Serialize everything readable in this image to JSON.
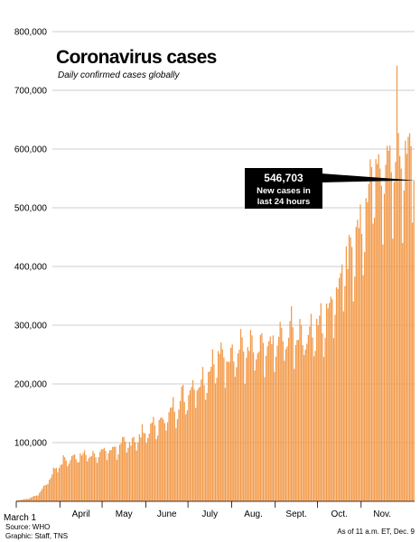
{
  "chart_data": {
    "type": "bar",
    "title": "Coronavirus cases",
    "subtitle": "Daily confirmed cases globally",
    "xlabel": "",
    "ylabel": "",
    "ylim": [
      0,
      800000
    ],
    "y_ticks": [
      "100,000",
      "200,000",
      "300,000",
      "400,000",
      "500,000",
      "600,000",
      "700,000",
      "800,000"
    ],
    "y_tick_values": [
      100000,
      200000,
      300000,
      400000,
      500000,
      600000,
      700000,
      800000
    ],
    "x_ticks": [
      {
        "label": "March 1",
        "date": "2020-03-01"
      },
      {
        "label": "April",
        "date": "2020-04-01"
      },
      {
        "label": "May",
        "date": "2020-05-01"
      },
      {
        "label": "June",
        "date": "2020-06-01"
      },
      {
        "label": "July",
        "date": "2020-07-01"
      },
      {
        "label": "Aug.",
        "date": "2020-08-01"
      },
      {
        "label": "Sept.",
        "date": "2020-09-01"
      },
      {
        "label": "Oct.",
        "date": "2020-10-01"
      },
      {
        "label": "Nov.",
        "date": "2020-11-01"
      }
    ],
    "grid": true,
    "bar_color": "#f29a4a",
    "start_date": "2020-03-01",
    "end_date": "2020-12-08",
    "monthly_points": [
      [
        "2020-03-01",
        1800
      ],
      [
        "2020-03-08",
        4000
      ],
      [
        "2020-03-15",
        10000
      ],
      [
        "2020-03-22",
        30000
      ],
      [
        "2020-03-29",
        58000
      ],
      [
        "2020-04-05",
        72000
      ],
      [
        "2020-04-12",
        76000
      ],
      [
        "2020-04-19",
        80000
      ],
      [
        "2020-04-26",
        80000
      ],
      [
        "2020-05-03",
        86000
      ],
      [
        "2020-05-10",
        90000
      ],
      [
        "2020-05-17",
        97000
      ],
      [
        "2020-05-24",
        105000
      ],
      [
        "2020-05-31",
        118000
      ],
      [
        "2020-06-07",
        128000
      ],
      [
        "2020-06-14",
        140000
      ],
      [
        "2020-06-21",
        160000
      ],
      [
        "2020-06-28",
        178000
      ],
      [
        "2020-07-05",
        198000
      ],
      [
        "2020-07-12",
        210000
      ],
      [
        "2020-07-19",
        235000
      ],
      [
        "2020-07-26",
        250000
      ],
      [
        "2020-08-02",
        255000
      ],
      [
        "2020-08-09",
        258000
      ],
      [
        "2020-08-16",
        255000
      ],
      [
        "2020-08-23",
        255000
      ],
      [
        "2020-08-30",
        265000
      ],
      [
        "2020-09-06",
        275000
      ],
      [
        "2020-09-13",
        290000
      ],
      [
        "2020-09-20",
        285000
      ],
      [
        "2020-09-27",
        290000
      ],
      [
        "2020-10-04",
        300000
      ],
      [
        "2020-10-11",
        345000
      ],
      [
        "2020-10-18",
        390000
      ],
      [
        "2020-10-25",
        440000
      ],
      [
        "2020-11-01",
        470000
      ],
      [
        "2020-11-08",
        540000
      ],
      [
        "2020-11-15",
        560000
      ],
      [
        "2020-11-22",
        575000
      ],
      [
        "2020-11-29",
        560000
      ],
      [
        "2020-12-06",
        600000
      ],
      [
        "2020-12-08",
        546703
      ]
    ],
    "peak": {
      "date": "2020-11-26",
      "value": 742000
    },
    "annotation": {
      "value_text": "546,703",
      "line1": "New cases in",
      "line2": "last 24 hours"
    }
  },
  "footer": {
    "source": "Source: WHO",
    "graphic": "Graphic: Staff, TNS",
    "as_of": "As of 11 a.m. ET, Dec. 9"
  },
  "colors": {
    "bar": "#f29a4a",
    "grid": "#bdbdbd",
    "callout_bg": "#000000",
    "callout_text": "#ffffff"
  }
}
